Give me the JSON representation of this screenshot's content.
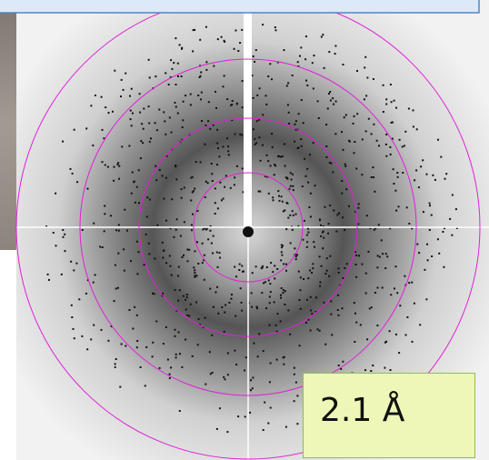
{
  "resolution_label": "2.1 Å"
}
